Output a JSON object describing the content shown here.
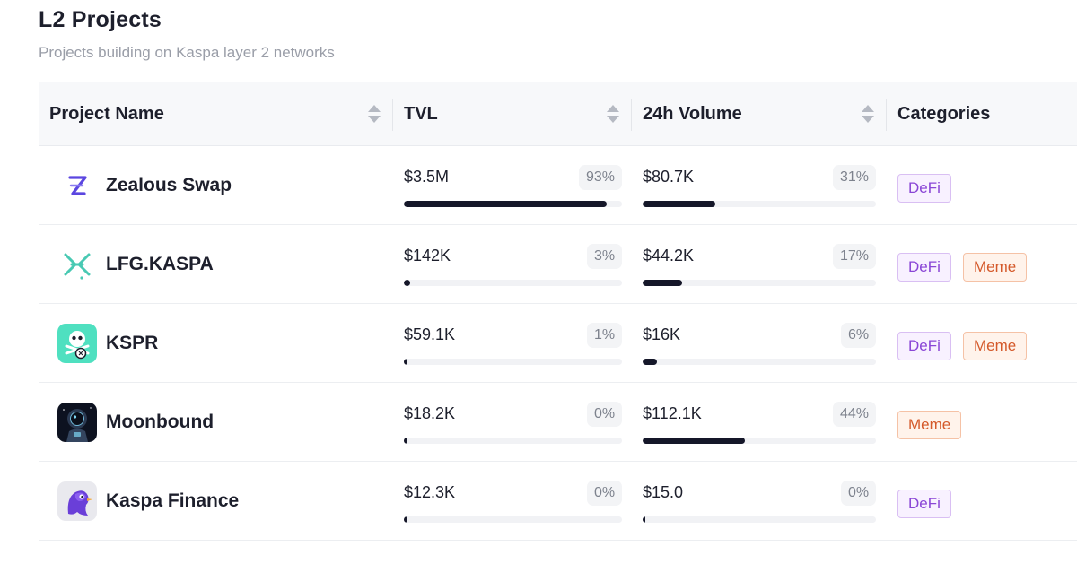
{
  "header": {
    "title": "L2 Projects",
    "subtitle": "Projects building on Kaspa layer 2 networks"
  },
  "table": {
    "columns": [
      {
        "label": "Project Name",
        "sortable": true
      },
      {
        "label": "TVL",
        "sortable": true
      },
      {
        "label": "24h Volume",
        "sortable": true
      },
      {
        "label": "Categories",
        "sortable": false
      }
    ],
    "rows": [
      {
        "name": "Zealous Swap",
        "logo_icon": "zealous-swap-logo-icon",
        "tvl": "$3.5M",
        "tvl_pct": "93%",
        "tvl_fraction": 0.93,
        "volume": "$80.7K",
        "volume_pct": "31%",
        "volume_fraction": 0.31,
        "categories": [
          "DeFi"
        ]
      },
      {
        "name": "LFG.KASPA",
        "logo_icon": "lfg-kaspa-logo-icon",
        "tvl": "$142K",
        "tvl_pct": "3%",
        "tvl_fraction": 0.03,
        "volume": "$44.2K",
        "volume_pct": "17%",
        "volume_fraction": 0.17,
        "categories": [
          "DeFi",
          "Meme"
        ]
      },
      {
        "name": "KSPR",
        "logo_icon": "kspr-logo-icon",
        "tvl": "$59.1K",
        "tvl_pct": "1%",
        "tvl_fraction": 0.01,
        "volume": "$16K",
        "volume_pct": "6%",
        "volume_fraction": 0.06,
        "categories": [
          "DeFi",
          "Meme"
        ]
      },
      {
        "name": "Moonbound",
        "logo_icon": "moonbound-logo-icon",
        "tvl": "$18.2K",
        "tvl_pct": "0%",
        "tvl_fraction": 0.0,
        "volume": "$112.1K",
        "volume_pct": "44%",
        "volume_fraction": 0.44,
        "categories": [
          "Meme"
        ]
      },
      {
        "name": "Kaspa Finance",
        "logo_icon": "kaspa-finance-logo-icon",
        "tvl": "$12.3K",
        "tvl_pct": "0%",
        "tvl_fraction": 0.0,
        "volume": "$15.0",
        "volume_pct": "0%",
        "volume_fraction": 0.0,
        "categories": [
          "DeFi"
        ]
      }
    ]
  },
  "colors": {
    "bar_fill": "#151729",
    "bar_track": "#f1f2f5",
    "defi_text": "#8a46d6",
    "meme_text": "#d4592a"
  }
}
